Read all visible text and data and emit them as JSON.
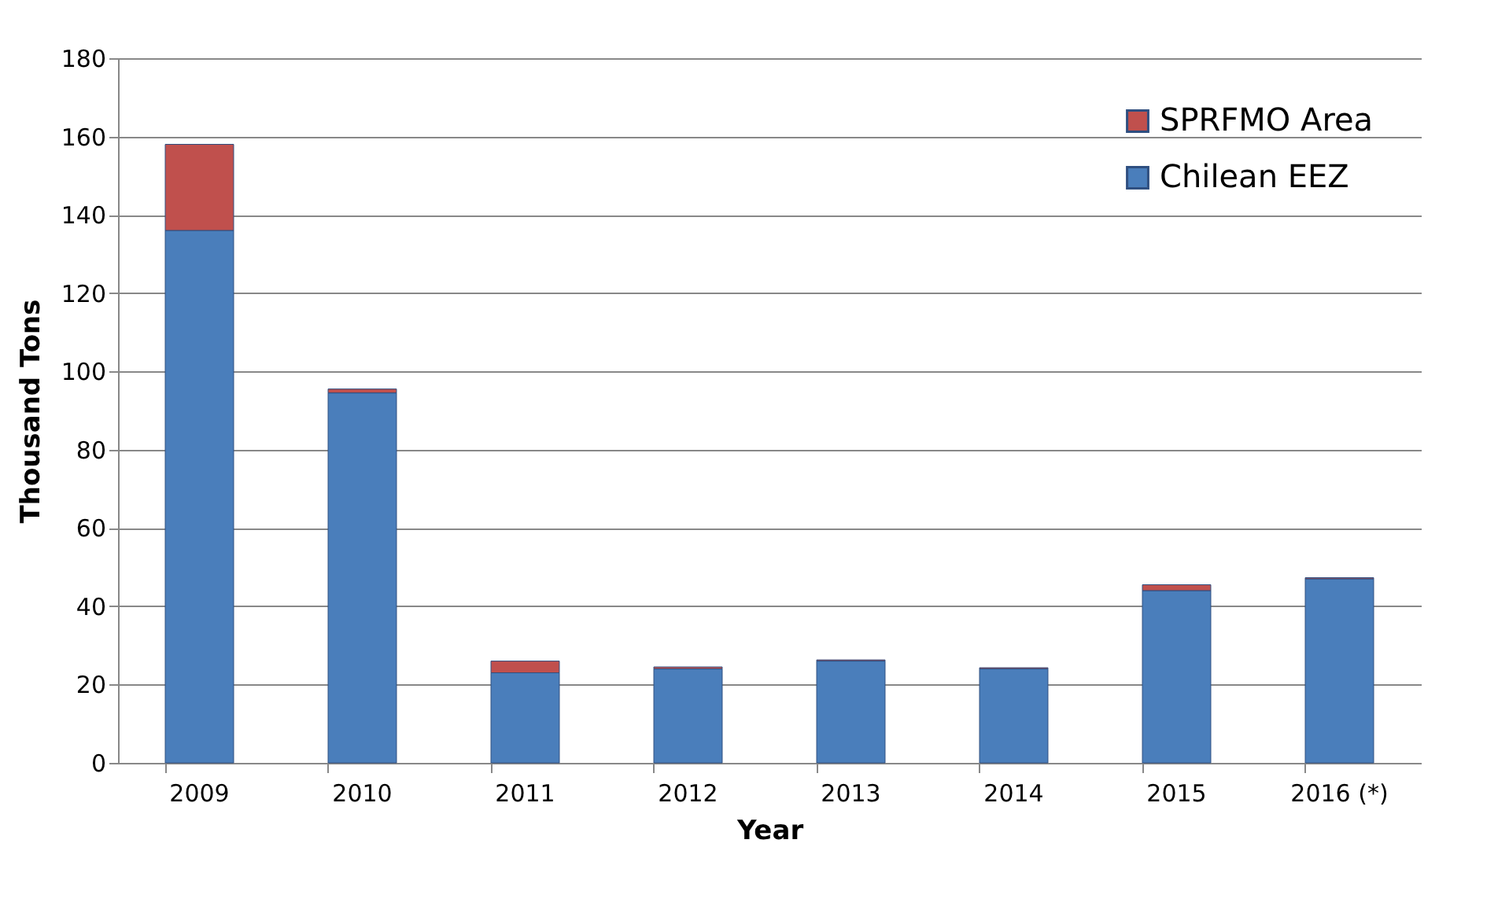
{
  "chart_data": {
    "type": "bar",
    "stacked": true,
    "xlabel": "Year",
    "ylabel": "Thousand Tons",
    "categories": [
      "2009",
      "2010",
      "2011",
      "2012",
      "2013",
      "2014",
      "2015",
      "2016 (*)"
    ],
    "series": [
      {
        "name": "Chilean EEZ",
        "color": "#4a7ebb",
        "values": [
          136,
          94.5,
          23,
          24,
          26,
          24,
          44,
          47
        ]
      },
      {
        "name": "SPRFMO Area",
        "color": "#c0504d",
        "values": [
          22,
          1,
          3,
          0.5,
          0.3,
          0.3,
          1.5,
          0.3
        ]
      }
    ],
    "ylim": [
      0,
      180
    ],
    "yticks": [
      0,
      20,
      40,
      60,
      80,
      100,
      120,
      140,
      160,
      180
    ],
    "grid": "y",
    "legend": "top right"
  }
}
